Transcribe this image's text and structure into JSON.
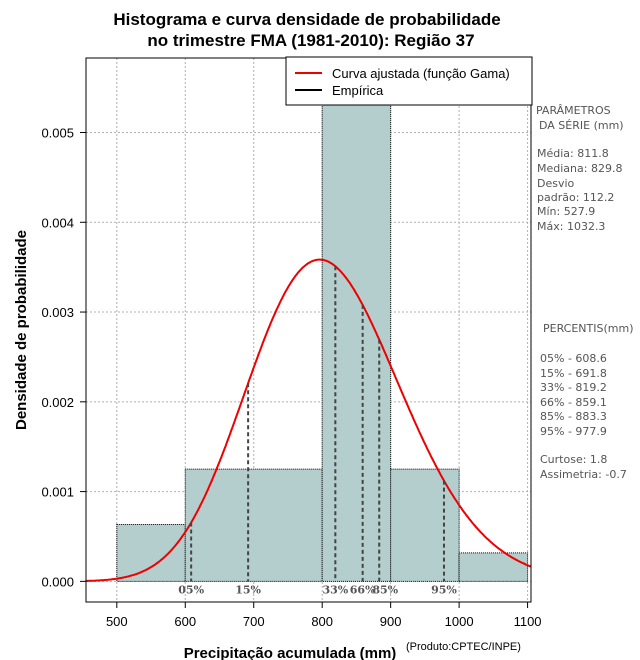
{
  "chart_data": {
    "type": "histogram",
    "title_line1": "Histograma e curva densidade de probabilidade",
    "title_line2": "no trimestre FMA (1981-2010): Região 37",
    "xlabel": "Precipitação acumulada (mm)",
    "ylabel": "Densidade de probabilidade",
    "product_note": "(Produto:CPTEC/INPE)",
    "xlim": [
      455,
      1105
    ],
    "ylim": [
      -0.00023,
      0.00583
    ],
    "x_ticks": [
      500,
      600,
      700,
      800,
      900,
      1000,
      1100
    ],
    "x_tick_labels": [
      "500",
      "600",
      "700",
      "800",
      "900",
      "1000",
      "1100"
    ],
    "y_ticks": [
      0,
      0.001,
      0.002,
      0.003,
      0.004,
      0.005
    ],
    "y_tick_labels": [
      "0.000",
      "0.001",
      "0.002",
      "0.003",
      "0.004",
      "0.005"
    ],
    "grid": true,
    "bins": [
      {
        "from": 500,
        "to": 600,
        "density": 0.000633
      },
      {
        "from": 600,
        "to": 800,
        "density": 0.00125
      },
      {
        "from": 800,
        "to": 900,
        "density": 0.00567
      },
      {
        "from": 900,
        "to": 1000,
        "density": 0.00125
      },
      {
        "from": 1000,
        "to": 1100,
        "density": 0.000317
      }
    ],
    "fitted_curve": {
      "distribution": "gamma",
      "mean": 811.8,
      "sd": 112.2,
      "color": "#ee0000"
    },
    "percentiles": [
      {
        "label": "05%",
        "value": 608.6
      },
      {
        "label": "15%",
        "value": 691.8
      },
      {
        "label": "33%",
        "value": 819.2
      },
      {
        "label": "66%",
        "value": 859.1
      },
      {
        "label": "85%",
        "value": 883.3
      },
      {
        "label": "95%",
        "value": 977.9
      }
    ],
    "legend": {
      "position": "top-right",
      "entries": [
        {
          "label": "Curva ajustada (função Gama)",
          "color": "#ee0000"
        },
        {
          "label": "Empírica",
          "color": "#000000"
        }
      ]
    },
    "colors": {
      "bar_fill": "#b4cdcd",
      "curve": "#ee0000",
      "grid": "#b0b0b0"
    }
  },
  "side_panel": {
    "params_title_1": "PARÂMETROS",
    "params_title_2": "DA SÉRIE (mm)",
    "media": "Média:  811.8",
    "mediana": "Mediana:  829.8",
    "desvio_1": "Desvio",
    "desvio_2": "padrão:  112.2",
    "min": "Mín:  527.9",
    "max": "Máx:  1032.3",
    "percentis_title": "PERCENTIS(mm)",
    "p05": "05% -   608.6",
    "p15": "15% -   691.8",
    "p33": "33% -   819.2",
    "p66": "66% -   859.1",
    "p85": "85% -   883.3",
    "p95": "95% -   977.9",
    "curtose": "Curtose:  1.8",
    "assimetria": "Assimetria:  -0.7"
  }
}
